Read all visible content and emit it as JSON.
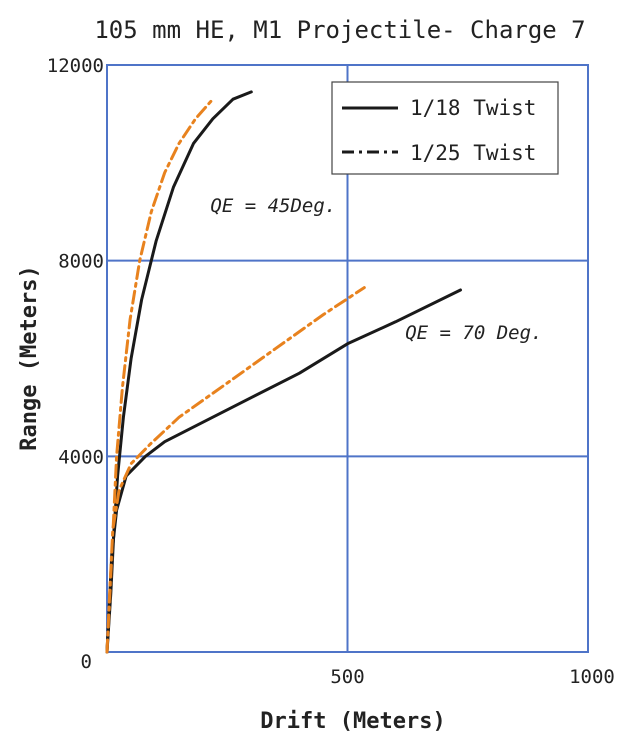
{
  "chart_data": {
    "type": "line",
    "title": "105 mm HE, M1 Projectile- Charge 7",
    "xlabel": "Drift (Meters)",
    "ylabel": "Range (Meters)",
    "xlim": [
      0,
      1000
    ],
    "ylim": [
      0,
      12000
    ],
    "xticks": [
      "0",
      "500",
      "1000"
    ],
    "yticks": [
      "0",
      "4000",
      "8000",
      "12000"
    ],
    "grid": true,
    "legend_position": "top-right",
    "colors": {
      "grid": "#4f74c8",
      "twist_18": "#1a1a1a",
      "twist_25": "#e8821e",
      "legend_dash_sample": "#1a1a1a"
    },
    "legend": [
      {
        "label": "1/18 Twist",
        "style": "solid"
      },
      {
        "label": "1/25 Twist",
        "style": "dash-dot"
      }
    ],
    "annotations": [
      {
        "text": "QE = 45Deg.",
        "x": 215,
        "y": 9000
      },
      {
        "text": "QE = 70 Deg.",
        "x": 620,
        "y": 6400
      }
    ],
    "series": [
      {
        "name": "1/18 Twist",
        "group": "QE = 45Deg.",
        "style": "solid",
        "points": [
          [
            0,
            0
          ],
          [
            8,
            1200
          ],
          [
            14,
            2400
          ],
          [
            22,
            3600
          ],
          [
            34,
            4800
          ],
          [
            50,
            6000
          ],
          [
            72,
            7200
          ],
          [
            102,
            8400
          ],
          [
            138,
            9500
          ],
          [
            180,
            10400
          ],
          [
            220,
            10900
          ],
          [
            262,
            11300
          ],
          [
            300,
            11450
          ]
        ]
      },
      {
        "name": "1/25 Twist",
        "group": "QE = 45Deg.",
        "style": "dash-dot",
        "points": [
          [
            0,
            0
          ],
          [
            7,
            1300
          ],
          [
            13,
            2600
          ],
          [
            20,
            4000
          ],
          [
            32,
            5400
          ],
          [
            48,
            6800
          ],
          [
            68,
            8000
          ],
          [
            92,
            9000
          ],
          [
            120,
            9800
          ],
          [
            150,
            10400
          ],
          [
            184,
            10900
          ],
          [
            220,
            11300
          ]
        ]
      },
      {
        "name": "1/18 Twist",
        "group": "QE = 70 Deg.",
        "style": "solid",
        "points": [
          [
            0,
            0
          ],
          [
            5,
            1000
          ],
          [
            10,
            2000
          ],
          [
            20,
            2900
          ],
          [
            40,
            3600
          ],
          [
            80,
            4000
          ],
          [
            120,
            4300
          ],
          [
            200,
            4700
          ],
          [
            300,
            5200
          ],
          [
            400,
            5700
          ],
          [
            500,
            6300
          ],
          [
            600,
            6750
          ],
          [
            735,
            7400
          ]
        ]
      },
      {
        "name": "1/25 Twist",
        "group": "QE = 70 Deg.",
        "style": "dash-dot",
        "points": [
          [
            0,
            0
          ],
          [
            6,
            1300
          ],
          [
            12,
            2500
          ],
          [
            25,
            3300
          ],
          [
            50,
            3850
          ],
          [
            90,
            4250
          ],
          [
            150,
            4800
          ],
          [
            250,
            5500
          ],
          [
            350,
            6200
          ],
          [
            450,
            6900
          ],
          [
            535,
            7450
          ]
        ]
      }
    ]
  }
}
